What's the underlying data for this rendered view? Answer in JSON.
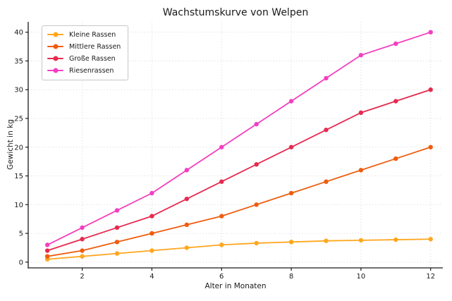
{
  "chart_data": {
    "type": "line",
    "title": "Wachstumskurve von Welpen",
    "xlabel": "Alter in Monaten",
    "ylabel": "Gewicht in kg",
    "x": [
      1,
      2,
      3,
      4,
      5,
      6,
      7,
      8,
      9,
      10,
      11,
      12
    ],
    "series": [
      {
        "name": "Kleine Rassen",
        "color": "#FFA71E",
        "values": [
          0.5,
          1,
          1.5,
          2,
          2.5,
          3,
          3.3,
          3.5,
          3.7,
          3.8,
          3.9,
          4
        ]
      },
      {
        "name": "Mittlere Rassen",
        "color": "#EE5D0F",
        "values": [
          1,
          2,
          3.5,
          5,
          6.5,
          8,
          10,
          12,
          14,
          16,
          18,
          20
        ]
      },
      {
        "name": "Große Rassen",
        "color": "#E62A4F",
        "values": [
          2,
          4,
          6,
          8,
          11,
          14,
          17,
          20,
          23,
          26,
          28,
          30
        ]
      },
      {
        "name": "Riesenrassen",
        "color": "#F23FC0",
        "values": [
          3,
          6,
          9,
          12,
          16,
          20,
          24,
          28,
          32,
          36,
          38,
          40
        ]
      }
    ],
    "xticks": [
      2,
      4,
      6,
      8,
      10,
      12
    ],
    "yticks": [
      0,
      5,
      10,
      15,
      20,
      25,
      30,
      35,
      40
    ],
    "xlim": [
      0.45,
      12.35
    ],
    "ylim": [
      -1,
      41.8
    ],
    "grid": true,
    "legend_position": "top-left",
    "colors": {
      "grid": "#d8d8d8",
      "axis": "#1a1a1a",
      "background": "#ffffff"
    }
  }
}
